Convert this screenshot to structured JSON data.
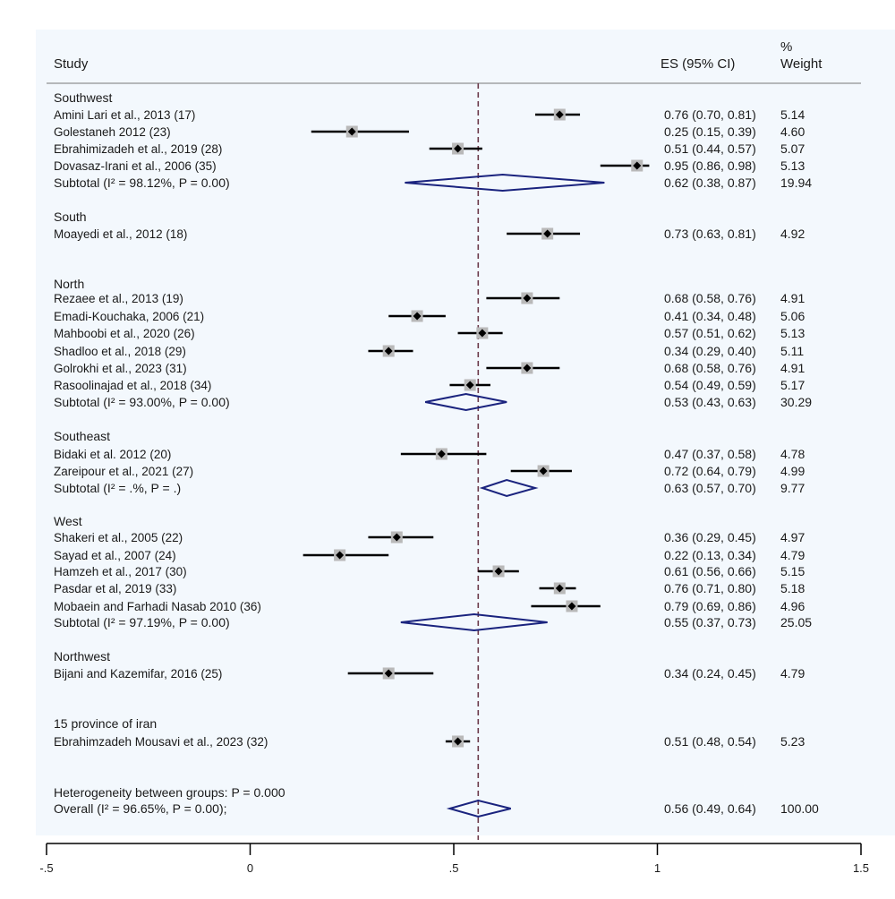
{
  "header": {
    "study": "Study",
    "es": "ES (95% CI)",
    "pct": "%",
    "weight": "Weight"
  },
  "colors": {
    "ci_line": "#000000",
    "diamond": "#1a237e",
    "ref_line": "#6b3a4a",
    "box": "#b9b9b9"
  },
  "chart_data": {
    "type": "forest",
    "xticks": [
      "-.5",
      "0",
      ".5",
      "1",
      "1.5"
    ],
    "xtick_values": [
      -0.5,
      0,
      0.5,
      1,
      1.5
    ],
    "xlim": [
      -0.5,
      1.5
    ],
    "overall_line": 0.56,
    "rows": [
      {
        "kind": "group",
        "label": "Southwest"
      },
      {
        "kind": "study",
        "label": "Amini Lari et al., 2013 (17)",
        "es": 0.76,
        "lo": 0.7,
        "hi": 0.81,
        "text": "0.76 (0.70, 0.81)",
        "weight": "5.14"
      },
      {
        "kind": "study",
        "label": "Golestaneh 2012 (23)",
        "es": 0.25,
        "lo": 0.15,
        "hi": 0.39,
        "text": "0.25 (0.15, 0.39)",
        "weight": "4.60"
      },
      {
        "kind": "study",
        "label": "Ebrahimizadeh et al., 2019 (28)",
        "es": 0.51,
        "lo": 0.44,
        "hi": 0.57,
        "text": "0.51 (0.44, 0.57)",
        "weight": "5.07"
      },
      {
        "kind": "study",
        "label": "Dovasaz-Irani et al., 2006 (35)",
        "es": 0.95,
        "lo": 0.86,
        "hi": 0.98,
        "text": "0.95 (0.86, 0.98)",
        "weight": "5.13"
      },
      {
        "kind": "subtotal",
        "label": "Subtotal  (I² = 98.12%,  P = 0.00)",
        "es": 0.62,
        "lo": 0.38,
        "hi": 0.87,
        "text": "0.62 (0.38, 0.87)",
        "weight": "19.94"
      },
      {
        "kind": "group",
        "label": "South"
      },
      {
        "kind": "study",
        "label": "Moayedi et al., 2012 (18)",
        "es": 0.73,
        "lo": 0.63,
        "hi": 0.81,
        "text": "0.73 (0.63, 0.81)",
        "weight": "4.92"
      },
      {
        "kind": "group",
        "label": "North"
      },
      {
        "kind": "study",
        "label": "Rezaee et al., 2013 (19)",
        "es": 0.68,
        "lo": 0.58,
        "hi": 0.76,
        "text": "0.68 (0.58, 0.76)",
        "weight": "4.91"
      },
      {
        "kind": "study",
        "label": "Emadi-Kouchaka, 2006 (21)",
        "es": 0.41,
        "lo": 0.34,
        "hi": 0.48,
        "text": "0.41 (0.34, 0.48)",
        "weight": "5.06"
      },
      {
        "kind": "study",
        "label": "Mahboobi et al., 2020 (26)",
        "es": 0.57,
        "lo": 0.51,
        "hi": 0.62,
        "text": "0.57 (0.51, 0.62)",
        "weight": "5.13"
      },
      {
        "kind": "study",
        "label": "Shadloo et al., 2018 (29)",
        "es": 0.34,
        "lo": 0.29,
        "hi": 0.4,
        "text": "0.34 (0.29, 0.40)",
        "weight": "5.11"
      },
      {
        "kind": "study",
        "label": "Golrokhi et al., 2023 (31)",
        "es": 0.68,
        "lo": 0.58,
        "hi": 0.76,
        "text": "0.68 (0.58, 0.76)",
        "weight": "4.91"
      },
      {
        "kind": "study",
        "label": "Rasoolinajad et al., 2018 (34)",
        "es": 0.54,
        "lo": 0.49,
        "hi": 0.59,
        "text": "0.54 (0.49, 0.59)",
        "weight": "5.17"
      },
      {
        "kind": "subtotal",
        "label": "Subtotal  (I² = 93.00%,  P = 0.00)",
        "es": 0.53,
        "lo": 0.43,
        "hi": 0.63,
        "text": "0.53 (0.43, 0.63)",
        "weight": "30.29"
      },
      {
        "kind": "group",
        "label": "Southeast"
      },
      {
        "kind": "study",
        "label": "Bidaki et al. 2012 (20)",
        "es": 0.47,
        "lo": 0.37,
        "hi": 0.58,
        "text": "0.47 (0.37, 0.58)",
        "weight": "4.78"
      },
      {
        "kind": "study",
        "label": "Zareipour et al., 2021 (27)",
        "es": 0.72,
        "lo": 0.64,
        "hi": 0.79,
        "text": "0.72 (0.64, 0.79)",
        "weight": "4.99"
      },
      {
        "kind": "subtotal",
        "label": "Subtotal  (I² = .%,  P = .)",
        "es": 0.63,
        "lo": 0.57,
        "hi": 0.7,
        "text": "0.63 (0.57, 0.70)",
        "weight": "9.77"
      },
      {
        "kind": "group",
        "label": "West"
      },
      {
        "kind": "study",
        "label": "Shakeri et al., 2005 (22)",
        "es": 0.36,
        "lo": 0.29,
        "hi": 0.45,
        "text": "0.36 (0.29, 0.45)",
        "weight": "4.97"
      },
      {
        "kind": "study",
        "label": "Sayad et al., 2007 (24)",
        "es": 0.22,
        "lo": 0.13,
        "hi": 0.34,
        "text": "0.22 (0.13, 0.34)",
        "weight": "4.79"
      },
      {
        "kind": "study",
        "label": "Hamzeh et al., 2017 (30)",
        "es": 0.61,
        "lo": 0.56,
        "hi": 0.66,
        "text": "0.61 (0.56, 0.66)",
        "weight": "5.15"
      },
      {
        "kind": "study",
        "label": "Pasdar et al, 2019 (33)",
        "es": 0.76,
        "lo": 0.71,
        "hi": 0.8,
        "text": "0.76 (0.71, 0.80)",
        "weight": "5.18"
      },
      {
        "kind": "study",
        "label": "Mobaein and Farhadi Nasab 2010 (36)",
        "es": 0.79,
        "lo": 0.69,
        "hi": 0.86,
        "text": "0.79 (0.69, 0.86)",
        "weight": "4.96"
      },
      {
        "kind": "subtotal",
        "label": "Subtotal  (I² = 97.19%,  P = 0.00)",
        "es": 0.55,
        "lo": 0.37,
        "hi": 0.73,
        "text": "0.55 (0.37, 0.73)",
        "weight": "25.05"
      },
      {
        "kind": "group",
        "label": "Northwest"
      },
      {
        "kind": "study",
        "label": "Bijani and Kazemifar, 2016 (25)",
        "es": 0.34,
        "lo": 0.24,
        "hi": 0.45,
        "text": "0.34 (0.24, 0.45)",
        "weight": "4.79"
      },
      {
        "kind": "group",
        "label": "15 province of iran"
      },
      {
        "kind": "study",
        "label": "Ebrahimzadeh Mousavi et al., 2023 (32)",
        "es": 0.51,
        "lo": 0.48,
        "hi": 0.54,
        "text": "0.51 (0.48, 0.54)",
        "weight": "5.23"
      },
      {
        "kind": "text",
        "label": "Heterogeneity between groups:  P = 0.000"
      },
      {
        "kind": "subtotal",
        "label": "Overall  (I² = 96.65%,  P = 0.00);",
        "es": 0.56,
        "lo": 0.49,
        "hi": 0.64,
        "text": "0.56 (0.49, 0.64)",
        "weight": "100.00"
      }
    ]
  }
}
